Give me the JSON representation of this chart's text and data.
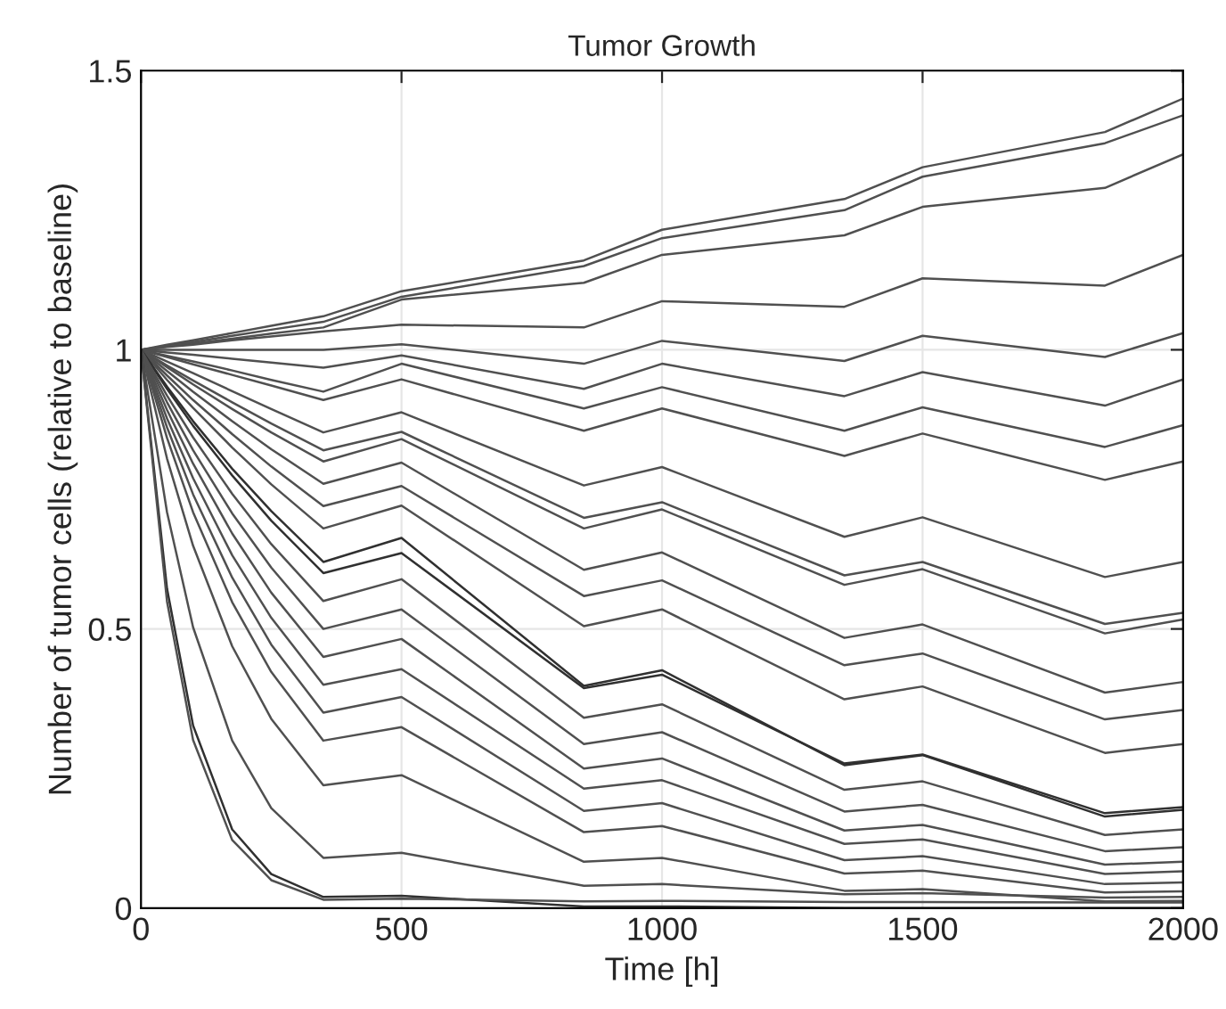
{
  "chart_data": {
    "type": "line",
    "title": "Tumor Growth",
    "xlabel": "Time [h]",
    "ylabel": "Number of tumor cells (relative to baseline)",
    "x": [
      0,
      50,
      100,
      175,
      250,
      350,
      500,
      850,
      1000,
      1350,
      1500,
      1850,
      2000
    ],
    "xlim": [
      0,
      2000
    ],
    "xticks": [
      0,
      500,
      1000,
      1500,
      2000
    ],
    "ylim": [
      0,
      1.5
    ],
    "yticks": [
      0,
      0.5,
      1,
      1.5
    ],
    "grid": true,
    "legend": false,
    "marker": "none",
    "line_style": "solid",
    "series": [
      {
        "color": "#505050",
        "values": [
          1,
          1.009,
          1.017,
          1.03,
          1.043,
          1.06,
          1.105,
          1.16,
          1.215,
          1.27,
          1.327,
          1.39,
          1.45
        ]
      },
      {
        "color": "#505050",
        "values": [
          1,
          1.007,
          1.014,
          1.025,
          1.036,
          1.05,
          1.095,
          1.15,
          1.2,
          1.25,
          1.31,
          1.37,
          1.42
        ]
      },
      {
        "color": "#505050",
        "values": [
          1,
          1.006,
          1.011,
          1.02,
          1.029,
          1.04,
          1.09,
          1.12,
          1.17,
          1.205,
          1.256,
          1.29,
          1.35
        ]
      },
      {
        "color": "#505050",
        "values": [
          1,
          1.005,
          1.009,
          1.017,
          1.024,
          1.033,
          1.045,
          1.04,
          1.087,
          1.077,
          1.128,
          1.115,
          1.17
        ]
      },
      {
        "color": "#505050",
        "values": [
          1,
          1,
          1,
          1,
          1,
          1,
          1.01,
          0.975,
          1.016,
          0.98,
          1.025,
          0.987,
          1.03
        ]
      },
      {
        "color": "#505050",
        "values": [
          1,
          0.995,
          0.991,
          0.984,
          0.977,
          0.968,
          0.99,
          0.93,
          0.975,
          0.917,
          0.96,
          0.9,
          0.947
        ]
      },
      {
        "color": "#505050",
        "values": [
          1,
          0.989,
          0.979,
          0.963,
          0.946,
          0.925,
          0.975,
          0.895,
          0.933,
          0.855,
          0.897,
          0.826,
          0.865
        ]
      },
      {
        "color": "#505050",
        "values": [
          1,
          0.987,
          0.974,
          0.955,
          0.936,
          0.91,
          0.947,
          0.855,
          0.895,
          0.81,
          0.85,
          0.767,
          0.8
        ]
      },
      {
        "color": "#505050",
        "values": [
          1,
          0.979,
          0.958,
          0.926,
          0.894,
          0.852,
          0.888,
          0.757,
          0.79,
          0.665,
          0.7,
          0.593,
          0.62
        ]
      },
      {
        "color": "#505050",
        "values": [
          1,
          0.972,
          0.945,
          0.906,
          0.868,
          0.82,
          0.853,
          0.699,
          0.727,
          0.596,
          0.62,
          0.509,
          0.529
        ]
      },
      {
        "color": "#505050",
        "values": [
          1,
          0.969,
          0.938,
          0.894,
          0.852,
          0.8,
          0.84,
          0.68,
          0.714,
          0.579,
          0.607,
          0.492,
          0.517
        ]
      },
      {
        "color": "#505050",
        "values": [
          1,
          0.962,
          0.925,
          0.872,
          0.822,
          0.76,
          0.798,
          0.606,
          0.637,
          0.484,
          0.508,
          0.386,
          0.405
        ]
      },
      {
        "color": "#505050",
        "values": [
          1,
          0.954,
          0.91,
          0.849,
          0.791,
          0.72,
          0.756,
          0.559,
          0.587,
          0.435,
          0.456,
          0.338,
          0.355
        ]
      },
      {
        "color": "#505050",
        "values": [
          1,
          0.946,
          0.896,
          0.825,
          0.759,
          0.68,
          0.721,
          0.505,
          0.535,
          0.374,
          0.397,
          0.278,
          0.294
        ]
      },
      {
        "color": "#303030",
        "values": [
          1,
          0.934,
          0.872,
          0.787,
          0.711,
          0.62,
          0.663,
          0.398,
          0.426,
          0.256,
          0.274,
          0.164,
          0.176
        ]
      },
      {
        "color": "#303030",
        "values": [
          1,
          0.93,
          0.864,
          0.775,
          0.694,
          0.6,
          0.636,
          0.394,
          0.418,
          0.259,
          0.275,
          0.17,
          0.181
        ]
      },
      {
        "color": "#505050",
        "values": [
          1,
          0.918,
          0.843,
          0.742,
          0.652,
          0.55,
          0.589,
          0.341,
          0.365,
          0.212,
          0.227,
          0.131,
          0.141
        ]
      },
      {
        "color": "#505050",
        "values": [
          1,
          0.906,
          0.82,
          0.707,
          0.61,
          0.5,
          0.535,
          0.294,
          0.315,
          0.173,
          0.185,
          0.102,
          0.109
        ]
      },
      {
        "color": "#505050",
        "values": [
          1,
          0.892,
          0.796,
          0.671,
          0.565,
          0.45,
          0.482,
          0.25,
          0.268,
          0.139,
          0.149,
          0.078,
          0.083
        ]
      },
      {
        "color": "#505050",
        "values": [
          1,
          0.877,
          0.77,
          0.632,
          0.52,
          0.4,
          0.428,
          0.214,
          0.229,
          0.115,
          0.123,
          0.061,
          0.066
        ]
      },
      {
        "color": "#505050",
        "values": [
          1,
          0.861,
          0.741,
          0.592,
          0.472,
          0.35,
          0.378,
          0.174,
          0.188,
          0.086,
          0.093,
          0.043,
          0.046
        ]
      },
      {
        "color": "#505050",
        "values": [
          1,
          0.842,
          0.709,
          0.548,
          0.423,
          0.3,
          0.324,
          0.136,
          0.147,
          0.062,
          0.067,
          0.028,
          0.03
        ]
      },
      {
        "color": "#505050",
        "values": [
          1,
          0.805,
          0.649,
          0.469,
          0.339,
          0.22,
          0.238,
          0.083,
          0.09,
          0.031,
          0.034,
          0.012,
          0.013
        ]
      },
      {
        "color": "#505050",
        "values": [
          1,
          0.709,
          0.503,
          0.3,
          0.179,
          0.09,
          0.099,
          0.04,
          0.043,
          0.025,
          0.027,
          0.019,
          0.02
        ]
      },
      {
        "color": "#303030",
        "values": [
          1,
          0.572,
          0.327,
          0.141,
          0.061,
          0.02,
          0.022,
          0.003,
          0.003,
          0,
          0,
          0,
          0
        ]
      },
      {
        "color": "#505050",
        "values": [
          1,
          0.549,
          0.301,
          0.122,
          0.05,
          0.015,
          0.017,
          0.012,
          0.013,
          0.011,
          0.011,
          0.01,
          0.01
        ]
      }
    ]
  }
}
